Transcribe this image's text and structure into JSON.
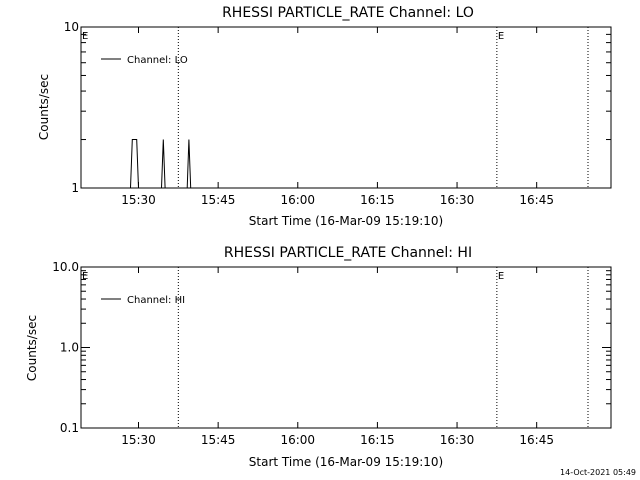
{
  "chart_data": [
    {
      "type": "line",
      "title": "RHESSI PARTICLE_RATE Channel: LO",
      "xlabel": "Start Time (16-Mar-09 15:19:10)",
      "ylabel": "Counts/sec",
      "y_scale": "log",
      "ylim": [
        1,
        10
      ],
      "y_ticks": [
        {
          "value": 1,
          "label": "1"
        },
        {
          "value": 10,
          "label": "10"
        }
      ],
      "xlim": [
        "15:19:10",
        "16:59:00"
      ],
      "x_ticks": [
        "15:30",
        "15:45",
        "16:00",
        "16:15",
        "16:30",
        "16:45"
      ],
      "grid": false,
      "legend_position": "top-left",
      "series": [
        {
          "name": "Channel: LO",
          "x": [
            "15:28:30",
            "15:28:50",
            "15:29:20",
            "15:29:40",
            "15:30:00",
            "15:34:20",
            "15:34:40",
            "15:35:00",
            "15:39:10",
            "15:39:30",
            "15:39:50"
          ],
          "y": [
            1,
            2,
            2,
            2,
            1,
            1,
            2,
            1,
            1,
            2,
            1
          ]
        }
      ],
      "vertical_lines": [
        "15:37:30",
        "16:37:30",
        "16:54:40"
      ],
      "markers": [
        {
          "x": "15:19:10",
          "label": "E"
        },
        {
          "x": "16:37:30",
          "label": "E"
        }
      ]
    },
    {
      "type": "line",
      "title": "RHESSI PARTICLE_RATE Channel: HI",
      "xlabel": "Start Time (16-Mar-09 15:19:10)",
      "ylabel": "Counts/sec",
      "y_scale": "log",
      "ylim": [
        0.1,
        10
      ],
      "y_ticks": [
        {
          "value": 0.1,
          "label": "0.1"
        },
        {
          "value": 1,
          "label": "1.0"
        },
        {
          "value": 10,
          "label": "10.0"
        }
      ],
      "xlim": [
        "15:19:10",
        "16:59:00"
      ],
      "x_ticks": [
        "15:30",
        "15:45",
        "16:00",
        "16:15",
        "16:30",
        "16:45"
      ],
      "grid": false,
      "legend_position": "top-left",
      "series": [
        {
          "name": "Channel: HI",
          "x": [],
          "y": []
        }
      ],
      "vertical_lines": [
        "15:37:30",
        "16:37:30",
        "16:54:40"
      ],
      "markers": [
        {
          "x": "15:19:10",
          "label": "E"
        },
        {
          "x": "16:37:30",
          "label": "E"
        }
      ]
    }
  ],
  "footer": "14-Oct-2021 05:49"
}
